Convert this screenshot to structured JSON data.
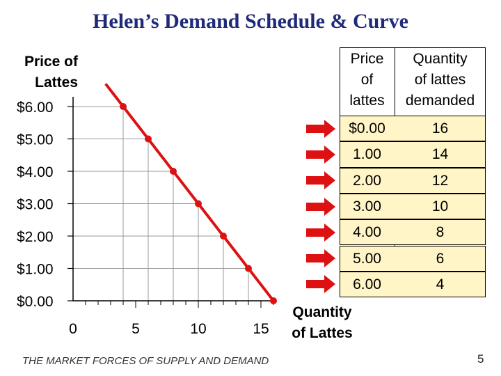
{
  "slide": {
    "title": "Helen’s Demand Schedule & Curve",
    "footer": "THE MARKET FORCES OF SUPPLY AND DEMAND",
    "page_number": "5"
  },
  "colors": {
    "title": "#1f2a7a",
    "curve": "#dd1111",
    "arrow": "#dd1111",
    "table_fill": "#fff5c6",
    "grid": "#999999"
  },
  "table": {
    "col1_header": [
      "Price",
      "of",
      "lattes"
    ],
    "col2_header": [
      "Quantity",
      "of lattes",
      "demanded"
    ],
    "rows": [
      {
        "price": "$0.00",
        "qty": "16"
      },
      {
        "price": "1.00",
        "qty": "14"
      },
      {
        "price": "2.00",
        "qty": "12"
      },
      {
        "price": "3.00",
        "qty": "10"
      },
      {
        "price": "4.00",
        "qty": "8"
      },
      {
        "price": "5.00",
        "qty": "6"
      },
      {
        "price": "6.00",
        "qty": "4"
      }
    ]
  },
  "chart_data": {
    "type": "line",
    "ylabel_lines": [
      "Price of",
      "Lattes"
    ],
    "xlabel_lines": [
      "Quantity",
      "of Lattes"
    ],
    "x_ticks": [
      0,
      5,
      10,
      15
    ],
    "x_tick_labels": [
      "0",
      "5",
      "10",
      "15"
    ],
    "y_ticks": [
      0,
      1,
      2,
      3,
      4,
      5,
      6
    ],
    "y_tick_labels": [
      "$0.00",
      "$1.00",
      "$2.00",
      "$3.00",
      "$4.00",
      "$5.00",
      "$6.00"
    ],
    "xlim": [
      0,
      16
    ],
    "ylim": [
      0,
      6.5
    ],
    "series": [
      {
        "points": [
          {
            "x": 4,
            "y": 6
          },
          {
            "x": 6,
            "y": 5
          },
          {
            "x": 8,
            "y": 4
          },
          {
            "x": 10,
            "y": 3
          },
          {
            "x": 12,
            "y": 2
          },
          {
            "x": 14,
            "y": 1
          },
          {
            "x": 16,
            "y": 0
          }
        ],
        "line_from": {
          "x": 2.6,
          "y": 6.7
        },
        "line_to": {
          "x": 16,
          "y": 0
        }
      }
    ],
    "dropline_grid": true
  }
}
